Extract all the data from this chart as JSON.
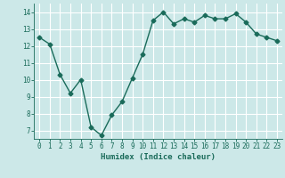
{
  "x": [
    0,
    1,
    2,
    3,
    4,
    5,
    6,
    7,
    8,
    9,
    10,
    11,
    12,
    13,
    14,
    15,
    16,
    17,
    18,
    19,
    20,
    21,
    22,
    23
  ],
  "y": [
    12.5,
    12.1,
    10.3,
    9.2,
    10.0,
    7.2,
    6.7,
    7.9,
    8.7,
    10.1,
    11.5,
    13.5,
    14.0,
    13.3,
    13.6,
    13.4,
    13.8,
    13.6,
    13.6,
    13.9,
    13.4,
    12.7,
    12.5,
    12.3
  ],
  "line_color": "#1a6b5a",
  "bg_color": "#cce8e8",
  "grid_color": "#ffffff",
  "xlabel": "Humidex (Indice chaleur)",
  "xlim": [
    -0.5,
    23.5
  ],
  "ylim": [
    6.5,
    14.5
  ],
  "yticks": [
    7,
    8,
    9,
    10,
    11,
    12,
    13,
    14
  ],
  "xticks": [
    0,
    1,
    2,
    3,
    4,
    5,
    6,
    7,
    8,
    9,
    10,
    11,
    12,
    13,
    14,
    15,
    16,
    17,
    18,
    19,
    20,
    21,
    22,
    23
  ],
  "marker": "D",
  "markersize": 2.5,
  "linewidth": 1.0
}
